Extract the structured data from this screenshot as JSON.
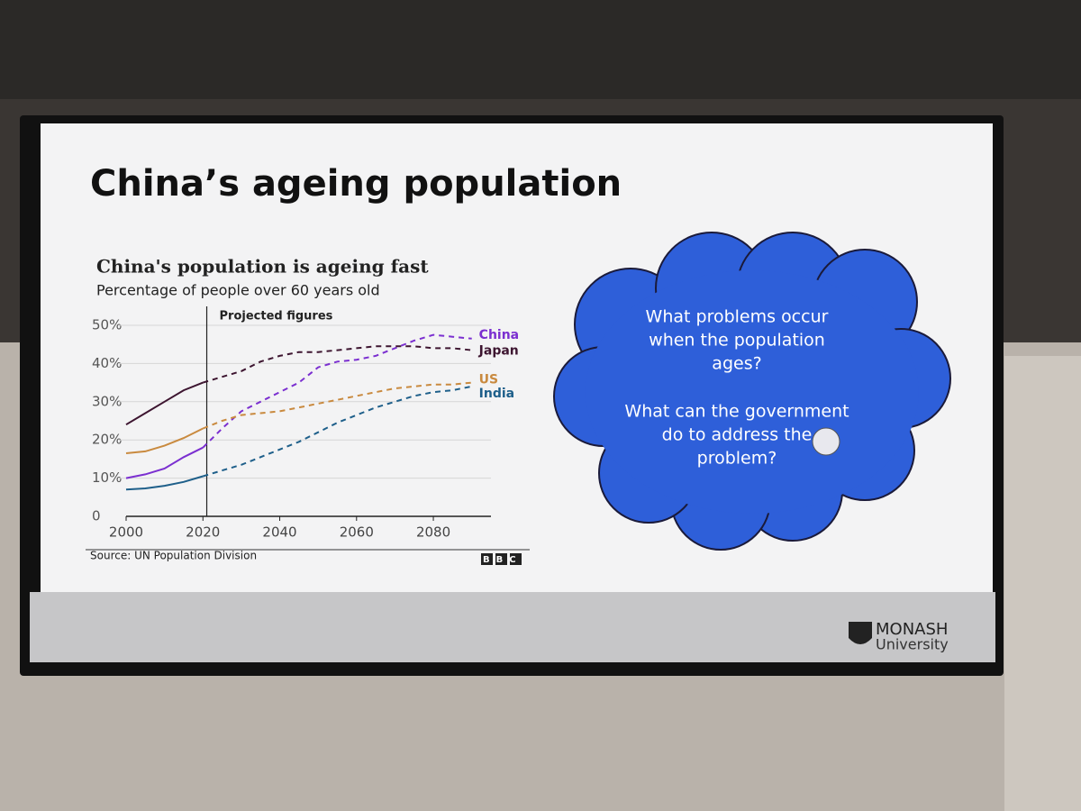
{
  "slide": {
    "title": "China’s ageing population",
    "cloud": {
      "lines": [
        "What problems occur",
        "when the population",
        "ages?",
        "What can the government",
        "do to address the",
        "problem?"
      ]
    },
    "logo": {
      "name": "MONASH",
      "subtitle": "University"
    }
  },
  "chart_data": {
    "type": "line",
    "title": "China's population is ageing fast",
    "subtitle": "Percentage of people over 60 years old",
    "source": "Source: UN Population Division",
    "brand": "BBC",
    "projection": {
      "x": 2021,
      "label": "Projected figures"
    },
    "x": [
      2000,
      2005,
      2010,
      2015,
      2020,
      2025,
      2030,
      2035,
      2040,
      2045,
      2050,
      2055,
      2060,
      2065,
      2070,
      2075,
      2080,
      2085,
      2090
    ],
    "series": [
      {
        "name": "China",
        "color": "#7b2fd0",
        "values": [
          10,
          11,
          12.5,
          15.5,
          18,
          23,
          27.5,
          30,
          32.5,
          35,
          39,
          40.5,
          41,
          42,
          44,
          46,
          47.5,
          47,
          46.5
        ]
      },
      {
        "name": "Japan",
        "color": "#3d1530",
        "values": [
          24,
          27,
          30,
          33,
          35,
          36.5,
          38,
          40.5,
          42,
          43,
          43,
          43.5,
          44,
          44.5,
          44.5,
          44.5,
          44,
          44,
          43.5
        ]
      },
      {
        "name": "US",
        "color": "#c98a3f",
        "values": [
          16.5,
          17,
          18.5,
          20.5,
          23,
          25,
          26.5,
          27,
          27.5,
          28.5,
          29.5,
          30.5,
          31.5,
          32.5,
          33.5,
          34,
          34.5,
          34.5,
          35
        ]
      },
      {
        "name": "India",
        "color": "#1e5f8a",
        "values": [
          7,
          7.3,
          8,
          9,
          10.5,
          12,
          13.5,
          15.5,
          17.5,
          19.5,
          22,
          24.5,
          26.5,
          28.5,
          30,
          31.5,
          32.5,
          33,
          34
        ]
      }
    ],
    "xlim": [
      2000,
      2095
    ],
    "xticks": [
      2000,
      2020,
      2040,
      2060,
      2080
    ],
    "ylim": [
      0,
      50
    ],
    "yticks": [
      0,
      {
        "value": 10,
        "label": "10%"
      },
      {
        "value": 20,
        "label": "20%"
      },
      {
        "value": 30,
        "label": "30%"
      },
      {
        "value": 40,
        "label": "40%"
      },
      {
        "value": 50,
        "label": "50%"
      }
    ],
    "grid": true
  }
}
